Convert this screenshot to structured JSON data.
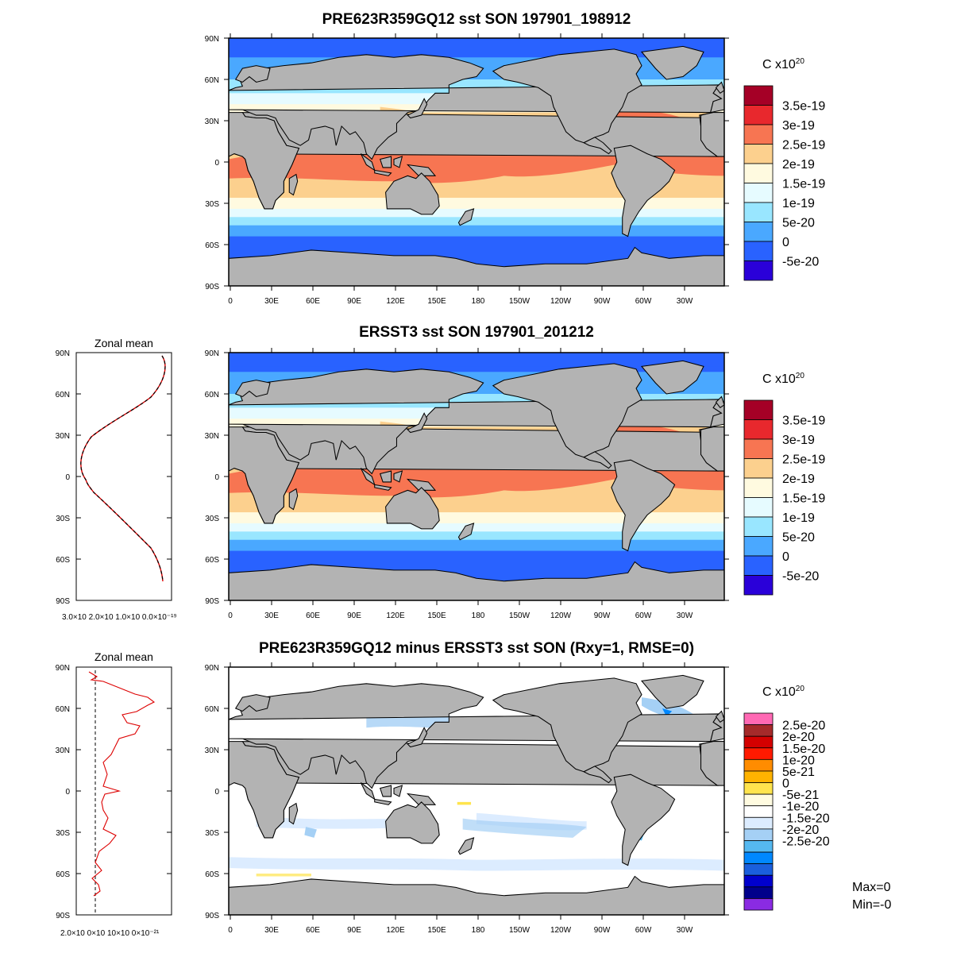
{
  "panels": [
    {
      "id": "model",
      "title": "PRE623R359GQ12 sst SON 197901_198912",
      "colorbar": {
        "unit": "C x10",
        "unit_exp": "20",
        "labels": [
          "3.5e-19",
          "3e-19",
          "2.5e-19",
          "2e-19",
          "1.5e-19",
          "1e-19",
          "5e-20",
          "0",
          "-5e-20"
        ],
        "colors": [
          "#a50026",
          "#e8282d",
          "#f77552",
          "#fcd08e",
          "#fffae0",
          "#e6fbff",
          "#99e6ff",
          "#4aa8ff",
          "#2962ff",
          "#2a00d9"
        ]
      },
      "zonal_mean": null
    },
    {
      "id": "obs",
      "title": "ERSST3 sst SON 197901_201212",
      "colorbar": {
        "unit": "C x10",
        "unit_exp": "20",
        "labels": [
          "3.5e-19",
          "3e-19",
          "2.5e-19",
          "2e-19",
          "1.5e-19",
          "1e-19",
          "5e-20",
          "0",
          "-5e-20"
        ],
        "colors": [
          "#a50026",
          "#e8282d",
          "#f77552",
          "#fcd08e",
          "#fffae0",
          "#e6fbff",
          "#99e6ff",
          "#4aa8ff",
          "#2962ff",
          "#2a00d9"
        ]
      },
      "zonal_mean": {
        "title": "Zonal mean",
        "x_tick_labels": "3.0×10 2.0×10 1.0×10 0.0×10⁻¹⁹",
        "lat_ticks": [
          "90N",
          "60N",
          "30N",
          "0",
          "30S",
          "60S",
          "90S"
        ]
      }
    },
    {
      "id": "diff",
      "title": "PRE623R359GQ12 minus ERSST3 sst SON (Rxy=1, RMSE=0)",
      "colorbar": {
        "unit": "C x10",
        "unit_exp": "20",
        "labels": [
          "2.5e-20",
          "2e-20",
          "1.5e-20",
          "1e-20",
          "5e-21",
          "0",
          "-5e-21",
          "-1e-20",
          "-1.5e-20",
          "-2e-20",
          "-2.5e-20"
        ],
        "colors": [
          "#ff69b4",
          "#a52a2a",
          "#d40000",
          "#ff1a00",
          "#ff8c00",
          "#ffb300",
          "#ffe44d",
          "#fffbe0",
          "#ffffff",
          "#dcecff",
          "#a5d0f5",
          "#55b8f0",
          "#0088ff",
          "#1a5fdd",
          "#0000cd",
          "#00008b",
          "#8a2be2"
        ]
      },
      "zonal_mean": {
        "title": "Zonal mean",
        "x_tick_labels": "2.0×10 0×10 10×10 0×10⁻²¹",
        "lat_ticks": [
          "90N",
          "60N",
          "30N",
          "0",
          "30S",
          "60S",
          "90S"
        ]
      },
      "stats": {
        "max": "Max=0",
        "min": "Min=-0"
      }
    }
  ],
  "axes": {
    "lon_ticks": [
      "0",
      "30E",
      "60E",
      "90E",
      "120E",
      "150E",
      "180",
      "150W",
      "120W",
      "90W",
      "60W",
      "30W"
    ],
    "lat_ticks": [
      "90N",
      "60N",
      "30N",
      "0",
      "30S",
      "60S",
      "90S"
    ]
  },
  "colors": {
    "land": "#b3b3b3",
    "ocean_diff": "#ffffff"
  }
}
